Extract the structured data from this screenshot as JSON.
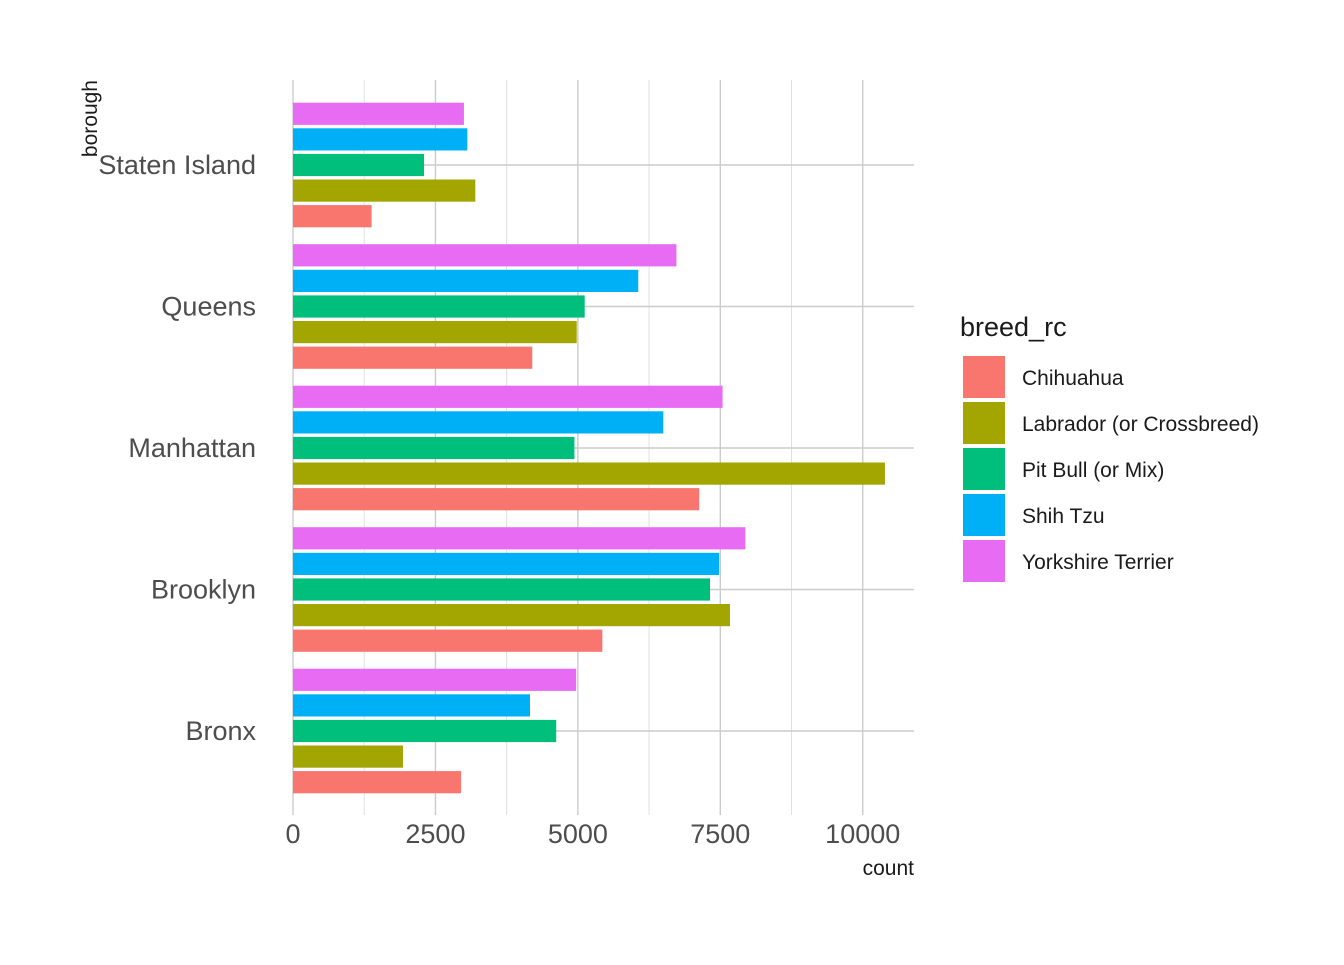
{
  "chart_data": {
    "type": "bar",
    "orientation": "horizontal",
    "title": "",
    "xlabel": "count",
    "ylabel": "borough",
    "xlim": [
      0,
      10900
    ],
    "x_ticks": [
      0,
      2500,
      5000,
      7500,
      10000
    ],
    "x_tick_labels": [
      "0",
      "2500",
      "5000",
      "7500",
      "10000"
    ],
    "grid": true,
    "legend_position": "right",
    "categories": [
      "Bronx",
      "Brooklyn",
      "Manhattan",
      "Queens",
      "Staten Island"
    ],
    "legend": {
      "title": "breed_rc"
    },
    "series": [
      {
        "name": "Chihuahua",
        "color": "#F8766D",
        "values": [
          2950,
          5430,
          7130,
          4200,
          1380
        ]
      },
      {
        "name": "Labrador (or Crossbreed)",
        "color": "#A3A500",
        "values": [
          1930,
          7670,
          10390,
          4980,
          3200
        ]
      },
      {
        "name": "Pit Bull (or Mix)",
        "color": "#00BF7D",
        "values": [
          4620,
          7320,
          4940,
          5120,
          2300
        ]
      },
      {
        "name": "Shih Tzu",
        "color": "#00B0F6",
        "values": [
          4160,
          7480,
          6500,
          6060,
          3060
        ]
      },
      {
        "name": "Yorkshire Terrier",
        "color": "#E76BF3",
        "values": [
          4970,
          7940,
          7540,
          6730,
          3000
        ]
      }
    ]
  }
}
